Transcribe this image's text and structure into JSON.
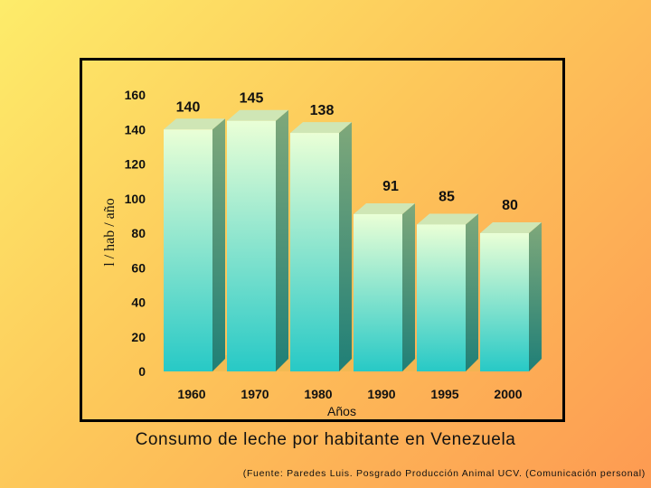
{
  "chart_data": {
    "type": "bar",
    "categories": [
      "1960",
      "1970",
      "1980",
      "1990",
      "1995",
      "2000"
    ],
    "values": [
      140,
      145,
      138,
      91,
      85,
      80
    ],
    "title": "Consumo de leche por habitante en Venezuela",
    "xlabel": "Años",
    "ylabel": "l / hab / año",
    "ylim": [
      0,
      160
    ],
    "yticks": [
      0,
      20,
      40,
      60,
      80,
      100,
      120,
      140,
      160
    ],
    "grid": false,
    "style": "3d",
    "colors": {
      "bar_top": "#eaffd6",
      "bar_bottom": "#27c9c6",
      "bar_side": "#1f7f77",
      "background": "#fdd865"
    }
  },
  "source_note": "(Fuente: Paredes Luis. Posgrado Producción Animal UCV. (Comunicación personal)"
}
